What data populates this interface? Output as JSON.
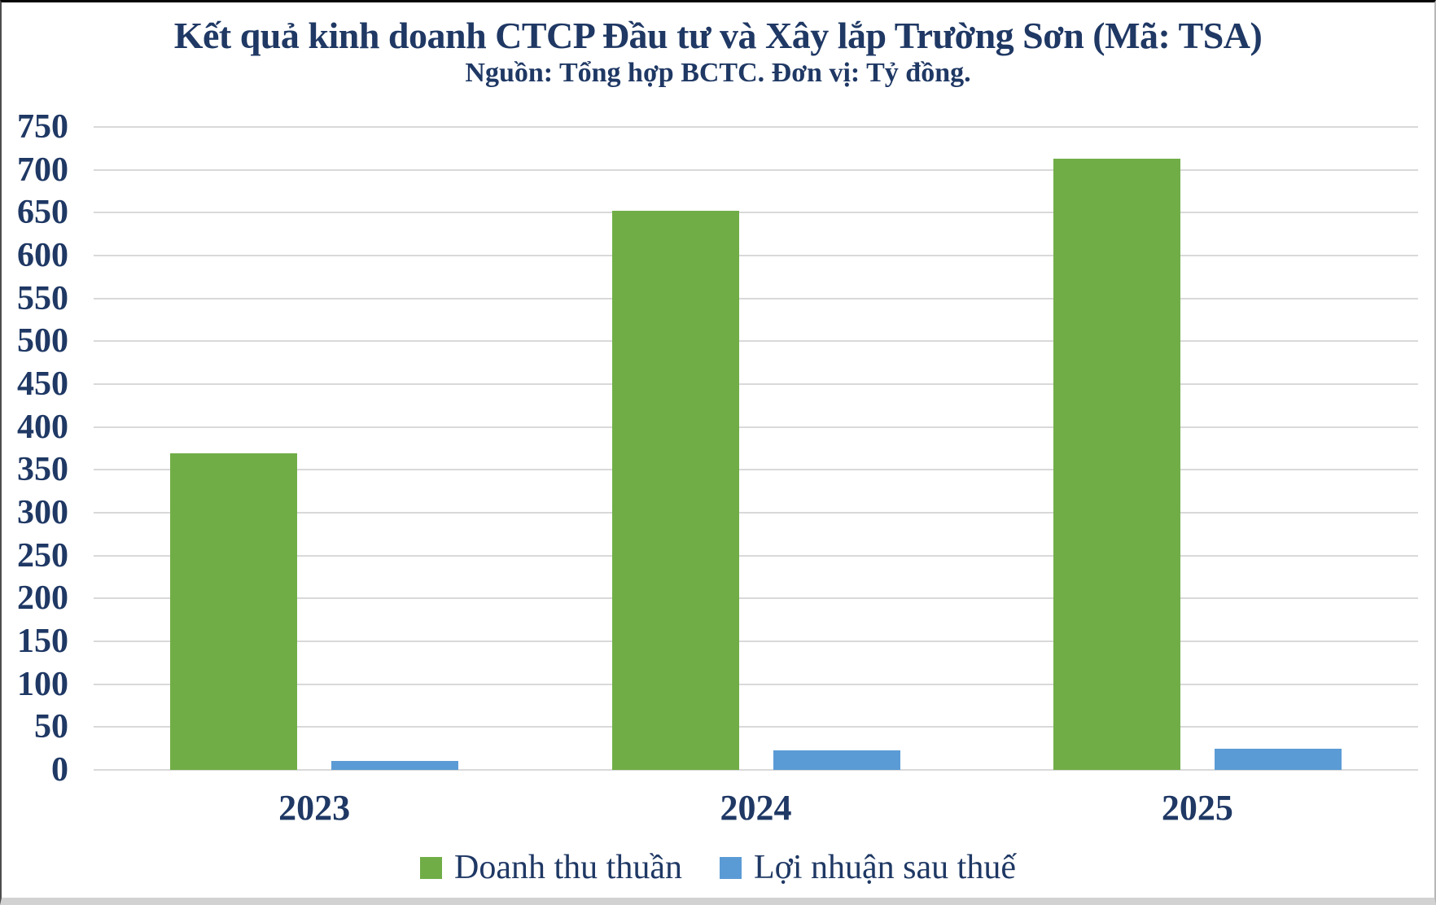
{
  "chart_data": {
    "type": "bar",
    "title": "Kết quả kinh doanh CTCP Đầu tư và Xây lắp Trường Sơn (Mã: TSA)",
    "subtitle": "Nguồn: Tổng hợp BCTC. Đơn vị: Tỷ đồng.",
    "categories": [
      "2023",
      "2024",
      "2025"
    ],
    "series": [
      {
        "name": "Doanh thu thuần",
        "color": "#70AD47",
        "values": [
          369,
          652,
          713
        ]
      },
      {
        "name": "Lợi nhuận sau thuế",
        "color": "#5B9BD5",
        "values": [
          10,
          23,
          25
        ]
      }
    ],
    "ylim": [
      0,
      750
    ],
    "yticks": [
      0,
      50,
      100,
      150,
      200,
      250,
      300,
      350,
      400,
      450,
      500,
      550,
      600,
      650,
      700,
      750
    ],
    "grid": "horizontal",
    "legend_position": "bottom",
    "colors": {
      "text": "#1F3864",
      "gridline": "#D9D9D9",
      "background": "#FFFFFF"
    }
  }
}
